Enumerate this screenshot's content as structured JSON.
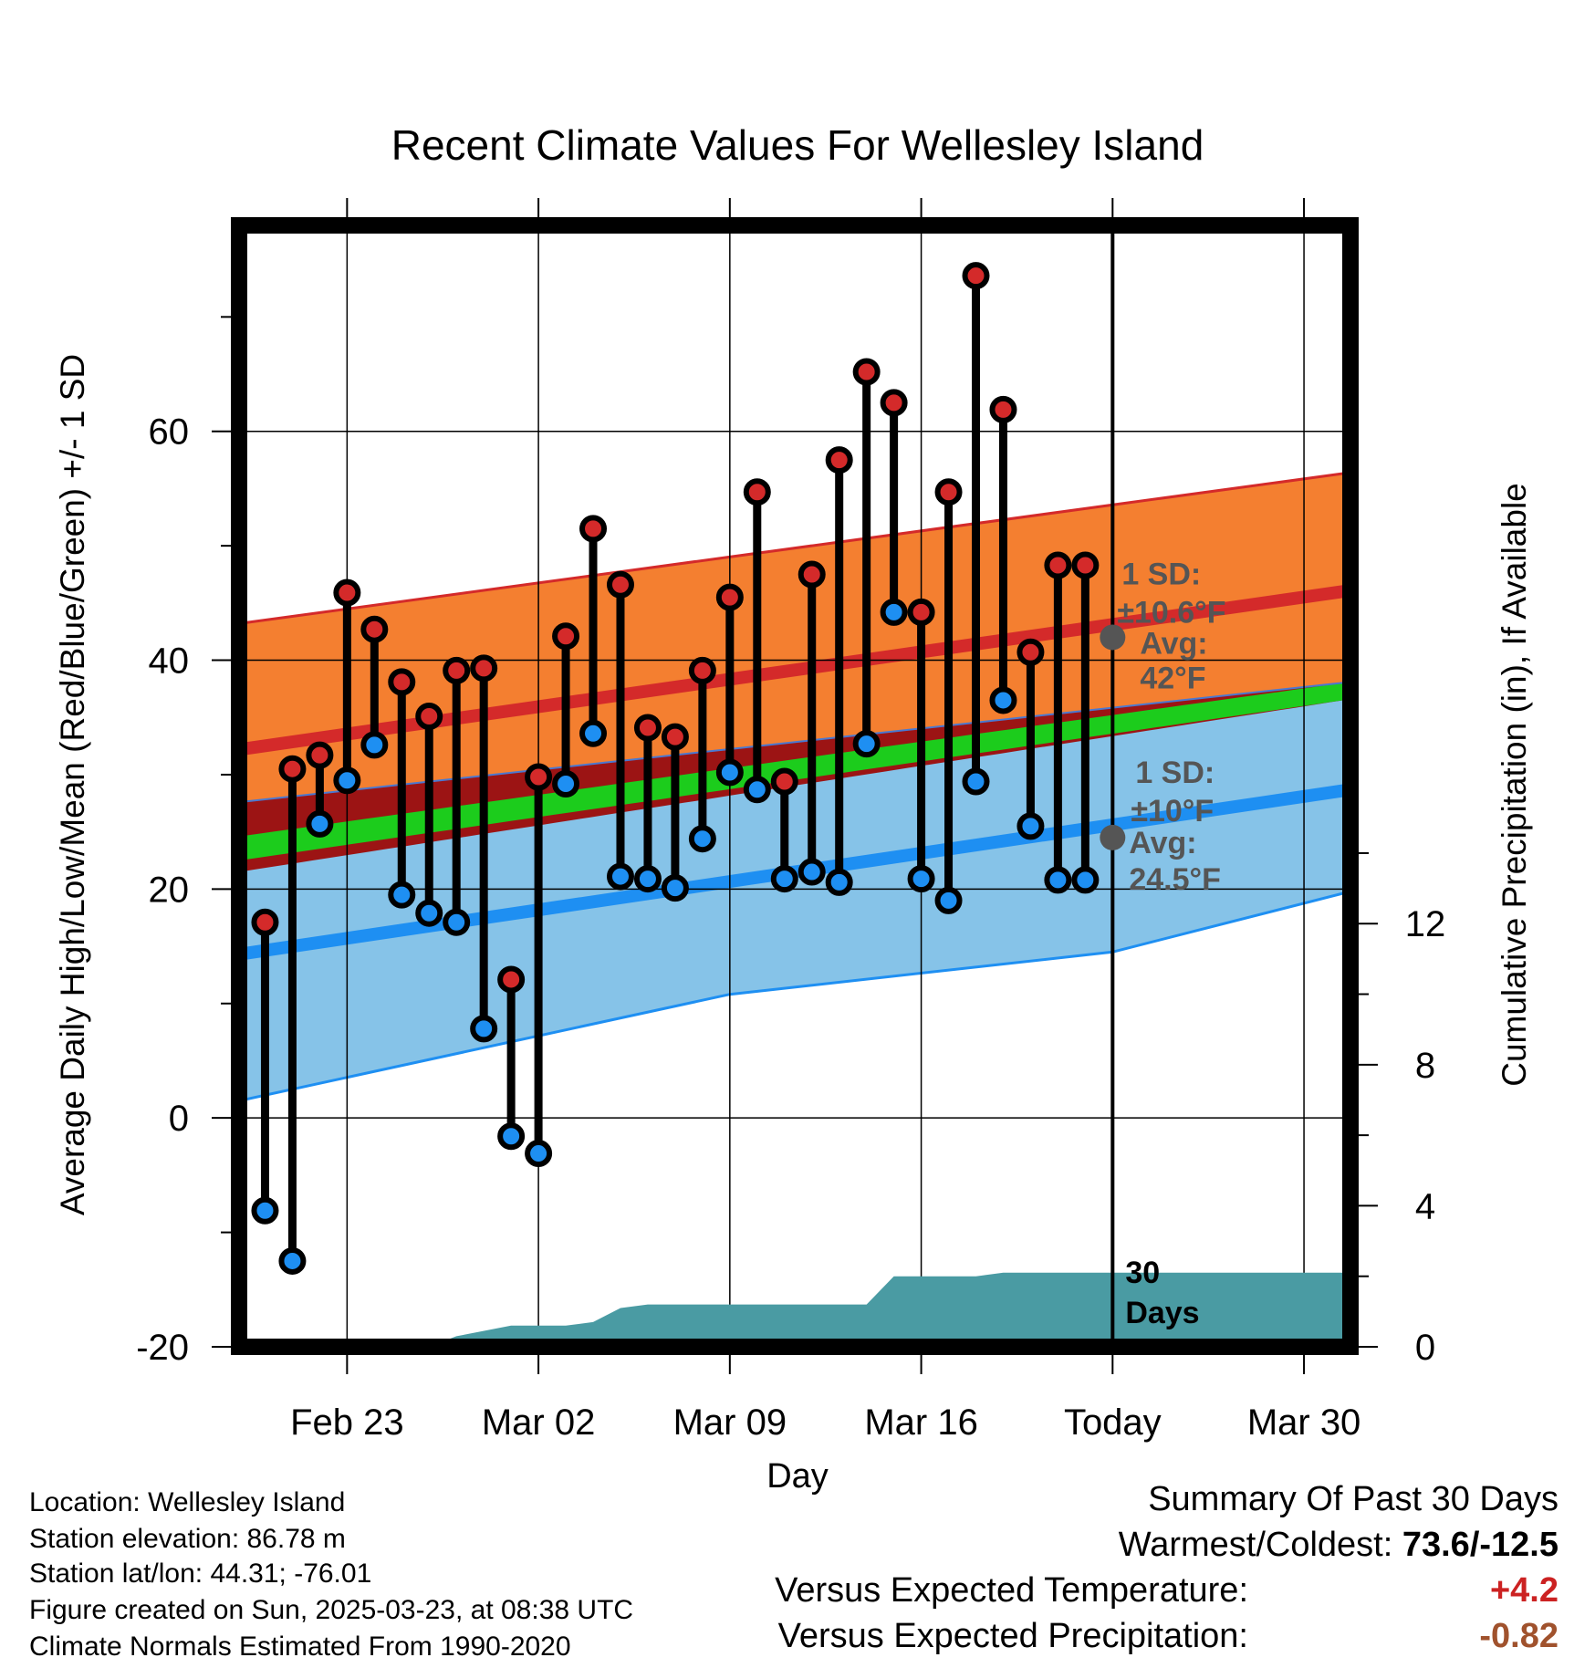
{
  "chart_data": {
    "type": "line",
    "title": "Recent Climate Values For Wellesley Island",
    "xlabel": "Day",
    "ylabel": "Average Daily High/Low/Mean (Red/Blue/Green) +/- 1 SD",
    "y2label": "Cumulative Precipitation (in), If Available",
    "x_tick_labels": [
      "Feb 23",
      "Mar 02",
      "Mar 09",
      "Mar 16",
      "Today",
      "Mar 30"
    ],
    "x_tick_days": [
      2,
      9,
      16,
      23,
      30,
      37
    ],
    "xlim": [
      -1.95,
      38.7
    ],
    "ylim": [
      -20,
      78
    ],
    "y_ticks": [
      -20,
      0,
      20,
      40,
      60
    ],
    "y_tick_labels": [
      "-20",
      "0",
      "20",
      "40",
      "60"
    ],
    "y2lim": [
      0,
      31.8
    ],
    "y2_ticks": [
      0,
      4,
      8,
      12
    ],
    "y2_tick_labels": [
      "0",
      "4",
      "8",
      "12"
    ],
    "grid": true,
    "today_day": 30,
    "normals": {
      "high_mean": [
        [
          -1.95,
          32.2
        ],
        [
          38.7,
          46.1
        ]
      ],
      "high_upper": [
        [
          -1.95,
          43.2
        ],
        [
          38.7,
          56.4
        ]
      ],
      "high_lower": [
        [
          -1.95,
          21.5
        ],
        [
          38.7,
          36.6
        ]
      ],
      "low_mean": [
        [
          -1.95,
          14.3
        ],
        [
          38.7,
          28.7
        ]
      ],
      "low_upper": [
        [
          -1.95,
          27.6
        ],
        [
          38.7,
          38.1
        ]
      ],
      "low_lower": [
        [
          -1.95,
          1.5
        ],
        [
          16,
          10.8
        ],
        [
          30,
          14.5
        ],
        [
          38.7,
          19.8
        ]
      ],
      "mean_upper": [
        [
          -1.95,
          24.6
        ],
        [
          38.7,
          38.1
        ]
      ],
      "mean_lower": [
        [
          -1.95,
          22.5
        ],
        [
          38.7,
          36.6
        ]
      ]
    },
    "colors": {
      "high_band": "#f47f30",
      "high_mean_line": "#d42a2a",
      "low_band": "#86c3e8",
      "low_mean_line": "#1e8ff2",
      "mean_band": "#1ccc1c",
      "overlap_band": "#9c1414",
      "precip_fill": "#4a9ba3",
      "high_marker": "#d42a2a",
      "low_marker": "#1e8ff2",
      "annotation": "#555555"
    },
    "series": [
      {
        "name": "High",
        "x": [
          -1,
          0,
          1,
          2,
          3,
          4,
          5,
          6,
          7,
          8,
          9,
          10,
          11,
          12,
          13,
          14,
          15,
          16,
          17,
          18,
          19,
          20,
          21,
          22,
          23,
          24,
          25,
          26,
          27,
          28,
          29
        ],
        "values": [
          17.1,
          30.5,
          31.7,
          45.9,
          42.7,
          38.1,
          35.1,
          39.1,
          39.3,
          12.1,
          29.8,
          42.1,
          51.5,
          46.6,
          34.1,
          33.3,
          39.1,
          45.5,
          54.7,
          29.4,
          47.5,
          57.5,
          65.2,
          62.5,
          44.2,
          54.7,
          73.6,
          61.9,
          40.7,
          48.3,
          48.3
        ],
        "markers": true
      },
      {
        "name": "Low",
        "x": [
          -1,
          0,
          1,
          2,
          3,
          4,
          5,
          6,
          7,
          8,
          9,
          10,
          11,
          12,
          13,
          14,
          15,
          16,
          17,
          18,
          19,
          20,
          21,
          22,
          23,
          24,
          25,
          26,
          27,
          28,
          29
        ],
        "values": [
          -8.1,
          -12.5,
          25.7,
          29.5,
          32.6,
          19.5,
          17.9,
          17.1,
          7.8,
          -1.6,
          -3.1,
          29.2,
          33.6,
          21.1,
          20.9,
          20.1,
          24.4,
          30.2,
          28.7,
          20.9,
          21.5,
          20.6,
          32.7,
          44.2,
          20.9,
          19,
          29.4,
          36.5,
          25.5,
          20.8,
          20.8
        ],
        "markers": true
      },
      {
        "name": "Precipitation",
        "axis": "y2",
        "x": [
          -1.95,
          5,
          6,
          8,
          9,
          10,
          11,
          12,
          13,
          14,
          15,
          16,
          17,
          18,
          19,
          20,
          21,
          22,
          23,
          24,
          25,
          26,
          27,
          28,
          29,
          30,
          38.7
        ],
        "values": [
          0,
          0,
          0.3,
          0.6,
          0.6,
          0.6,
          0.7,
          1.1,
          1.2,
          1.2,
          1.2,
          1.2,
          1.2,
          1.2,
          1.2,
          1.2,
          1.2,
          2.0,
          2.0,
          2.0,
          2.0,
          2.1,
          2.1,
          2.1,
          2.1,
          2.1,
          2.1
        ]
      }
    ],
    "annotations": {
      "high_sd_line1": "1 SD:",
      "high_sd_line2": "±10.6°F",
      "high_avg_line1": "Avg:",
      "high_avg_line2": "42°F",
      "high_avg_value": 42,
      "low_sd_line1": "1 SD:",
      "low_sd_line2": "±10°F",
      "low_avg_line1": "Avg:",
      "low_avg_line2": "24.5°F",
      "low_avg_value": 24.5,
      "days_line1": "30",
      "days_line2": "Days"
    }
  },
  "station_info": {
    "location": "Location: Wellesley Island",
    "elevation": "Station elevation: 86.78 m",
    "latlon": "Station lat/lon: 44.31; -76.01",
    "created": "Figure created on Sun, 2025-03-23, at 08:38 UTC",
    "normals": "Climate Normals Estimated From 1990-2020"
  },
  "summary": {
    "title": "Summary Of Past 30 Days",
    "warmest_label": "Warmest/Coldest: ",
    "warmest_value": "73.6/-12.5",
    "temp_label": "Versus Expected Temperature:",
    "temp_value": "+4.2",
    "temp_color": "#cc2222",
    "precip_label": "Versus Expected Precipitation:",
    "precip_value": "-0.82",
    "precip_color": "#a0522d"
  }
}
